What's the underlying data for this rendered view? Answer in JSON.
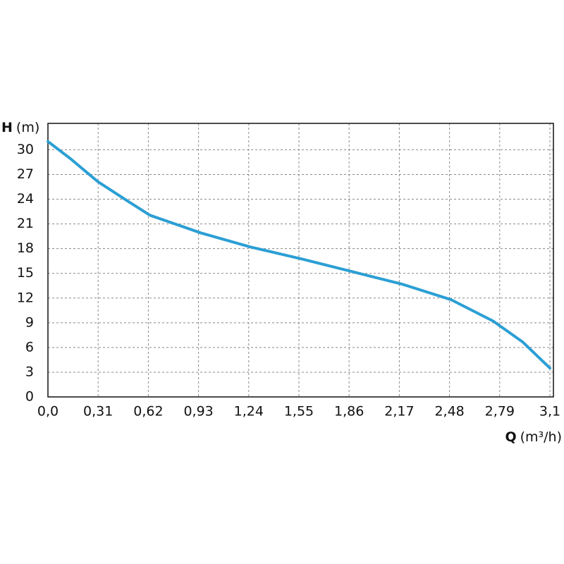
{
  "chart_data": {
    "type": "line",
    "y_label": {
      "symbol": "H",
      "unit": "(m)"
    },
    "x_label": {
      "symbol": "Q",
      "unit": "(m³/h)"
    },
    "x": [
      0,
      0.14,
      0.31,
      0.49,
      0.63,
      0.945,
      1.25,
      1.576,
      1.88,
      2.185,
      2.49,
      2.75,
      2.93,
      3.1
    ],
    "series": [
      {
        "color": "#2b9fd4",
        "values": [
          31.0,
          28.9,
          26.1,
          23.8,
          22.05,
          19.9,
          18.2,
          16.7,
          15.2,
          13.7,
          11.8,
          9.2,
          6.7,
          3.5
        ]
      }
    ],
    "xlim": [
      0,
      3.1
    ],
    "xticks": [
      {
        "value": 0,
        "label": "0,0"
      },
      {
        "value": 0.31,
        "label": "0,31"
      },
      {
        "value": 0.62,
        "label": "0,62"
      },
      {
        "value": 0.93,
        "label": "0,93"
      },
      {
        "value": 1.24,
        "label": "1,24"
      },
      {
        "value": 1.55,
        "label": "1,55"
      },
      {
        "value": 1.86,
        "label": "1,86"
      },
      {
        "value": 2.17,
        "label": "2,17"
      },
      {
        "value": 2.48,
        "label": "2,48"
      },
      {
        "value": 2.79,
        "label": "2,79"
      },
      {
        "value": 3.1,
        "label": "3,1"
      }
    ],
    "ylim": [
      0,
      33.2
    ],
    "yticks": [
      0,
      3,
      6,
      9,
      12,
      15,
      18,
      21,
      24,
      27,
      30
    ],
    "grid": true
  }
}
